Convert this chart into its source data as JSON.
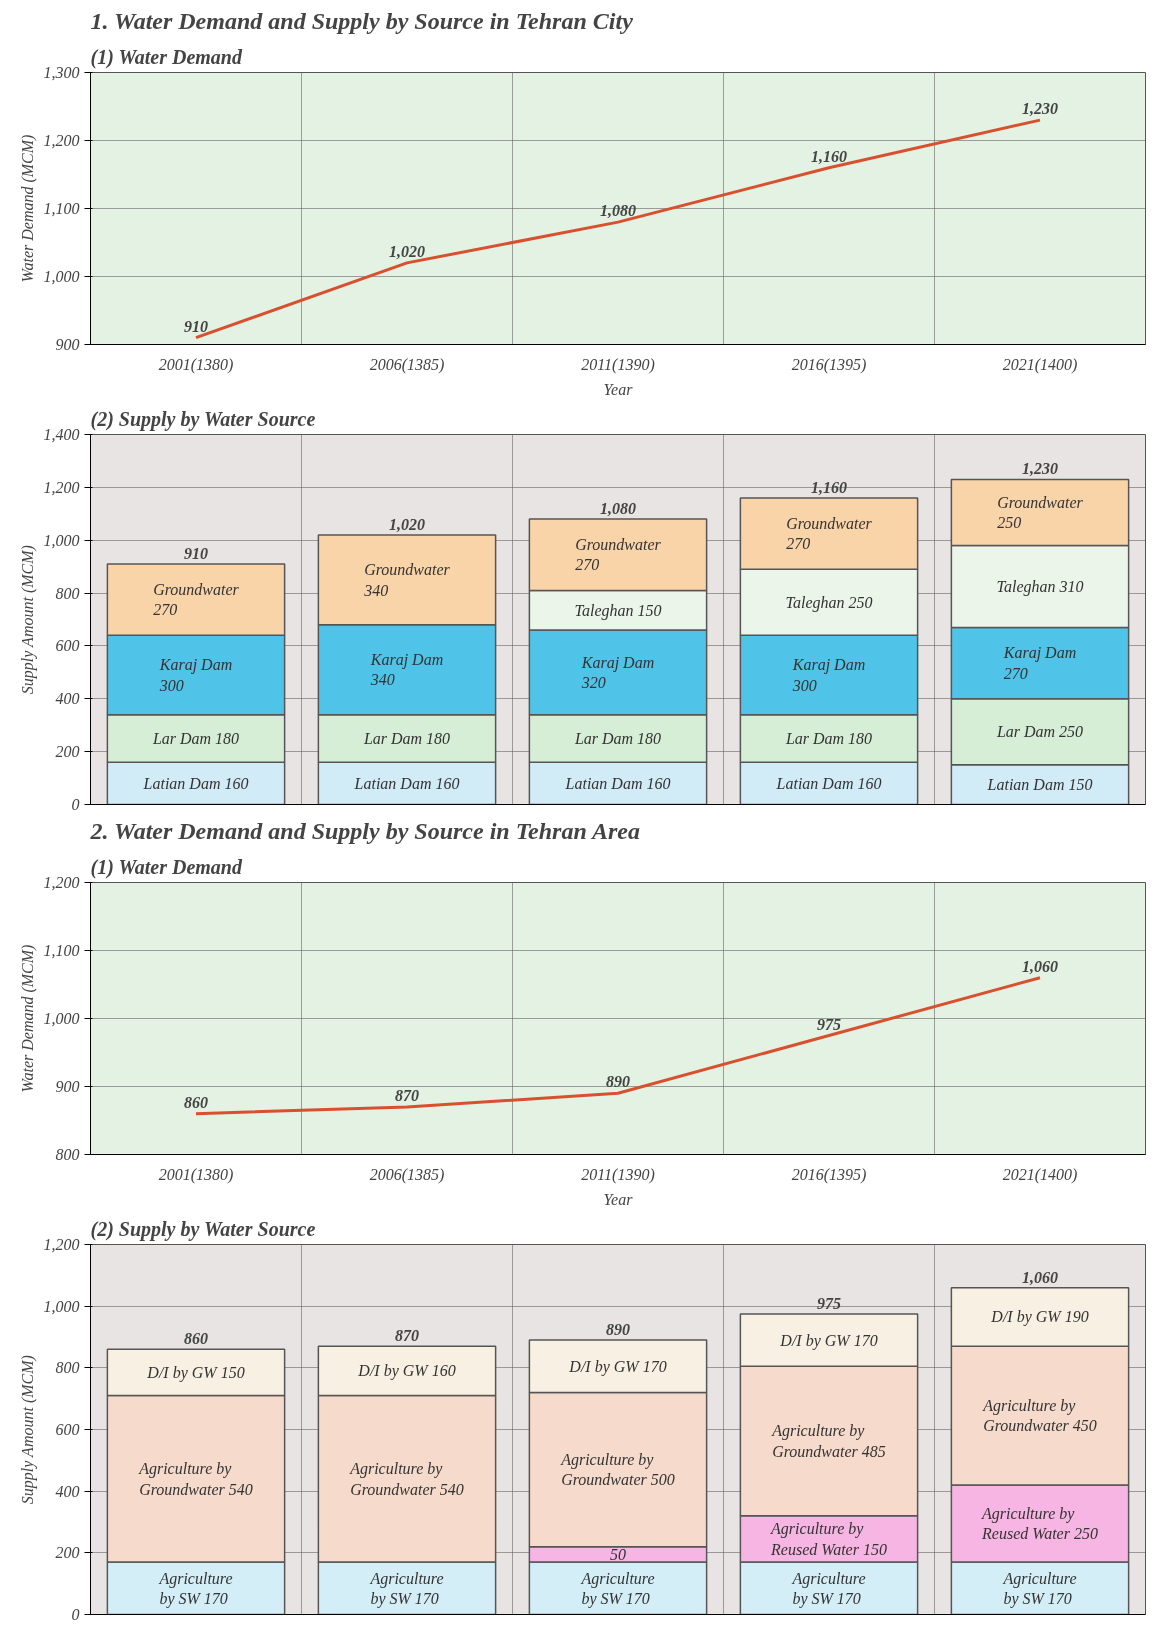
{
  "chart_data": [
    {
      "type": "line",
      "title": "1. Water Demand and Supply by Source in Tehran City",
      "subtitle": "(1) Water Demand",
      "xlabel": "Year",
      "ylabel": "Water Demand (MCM)",
      "categories": [
        "2001(1380)",
        "2006(1385)",
        "2011(1390)",
        "2016(1395)",
        "2021(1400)"
      ],
      "color": "#d9502e",
      "values": [
        910,
        1020,
        1080,
        1160,
        1230
      ],
      "value_labels": [
        "910",
        "1,020",
        "1,080",
        "1,160",
        "1,230"
      ],
      "ylim": [
        900,
        1300
      ],
      "yticks": [
        900,
        {
          "value": 1000,
          "label": "1,000"
        },
        {
          "value": 1100,
          "label": "1,100"
        },
        {
          "value": 1200,
          "label": "1,200"
        },
        {
          "value": 1300,
          "label": "1,300"
        }
      ],
      "grid": true
    },
    {
      "type": "bar",
      "stacked": true,
      "title": "(2) Supply by Water Source",
      "ylabel": "Supply Amount (MCM)",
      "categories": [
        null,
        null,
        null,
        null,
        null
      ],
      "ylim": [
        0,
        1400
      ],
      "yticks": [
        0,
        200,
        400,
        600,
        800,
        {
          "value": 1000,
          "label": "1,000"
        },
        {
          "value": 1200,
          "label": "1,200"
        },
        {
          "value": 1400,
          "label": "1,400"
        }
      ],
      "grid": true,
      "totals": [
        "910",
        "1,020",
        "1,080",
        "1,160",
        "1,230"
      ],
      "series": [
        {
          "color": "#d2ecf7",
          "values": [
            160,
            160,
            160,
            160,
            150
          ],
          "value_labels": [
            "Latian Dam 160",
            "Latian Dam 160",
            "Latian Dam 160",
            "Latian Dam 160",
            "Latian Dam 150"
          ]
        },
        {
          "color": "#d6edd6",
          "values": [
            180,
            180,
            180,
            180,
            250
          ],
          "value_labels": [
            "Lar Dam 180",
            "Lar Dam 180",
            "Lar Dam 180",
            "Lar Dam 180",
            "Lar Dam 250"
          ]
        },
        {
          "color": "#4fc4e8",
          "values": [
            300,
            340,
            320,
            300,
            270
          ],
          "value_labels": [
            "Karaj Dam\n300",
            "Karaj Dam\n340",
            "Karaj Dam\n320",
            "Karaj Dam\n300",
            "Karaj Dam\n270"
          ]
        },
        {
          "color": "#ebf5ea",
          "values": [
            null,
            null,
            150,
            250,
            310
          ],
          "value_labels": [
            null,
            null,
            "Taleghan 150",
            "Taleghan 250",
            "Taleghan 310"
          ]
        },
        {
          "color": "#f9d4a9",
          "values": [
            270,
            340,
            270,
            270,
            250
          ],
          "value_labels": [
            "Groundwater\n270",
            "Groundwater\n340",
            "Groundwater\n270",
            "Groundwater\n270",
            "Groundwater\n250"
          ]
        }
      ]
    },
    {
      "type": "line",
      "title": "2. Water Demand and Supply by Source in Tehran Area",
      "subtitle": "(1) Water Demand",
      "xlabel": "Year",
      "ylabel": "Water Demand (MCM)",
      "categories": [
        "2001(1380)",
        "2006(1385)",
        "2011(1390)",
        "2016(1395)",
        "2021(1400)"
      ],
      "color": "#d9502e",
      "values": [
        860,
        870,
        890,
        975,
        1060
      ],
      "value_labels": [
        "860",
        "870",
        "890",
        "975",
        "1,060"
      ],
      "ylim": [
        800,
        1200
      ],
      "yticks": [
        800,
        900,
        {
          "value": 1000,
          "label": "1,000"
        },
        {
          "value": 1100,
          "label": "1,100"
        },
        {
          "value": 1200,
          "label": "1,200"
        }
      ],
      "grid": true
    },
    {
      "type": "bar",
      "stacked": true,
      "title": "(2) Supply by Water Source",
      "ylabel": "Supply Amount (MCM)",
      "categories": [
        null,
        null,
        null,
        null,
        null
      ],
      "ylim": [
        0,
        1200
      ],
      "yticks": [
        0,
        200,
        400,
        600,
        800,
        {
          "value": 1000,
          "label": "1,000"
        },
        {
          "value": 1200,
          "label": "1,200"
        }
      ],
      "grid": true,
      "totals": [
        "860",
        "870",
        "890",
        "975",
        "1,060"
      ],
      "series": [
        {
          "color": "#d4eef8",
          "values": [
            170,
            170,
            170,
            170,
            170
          ],
          "value_labels": [
            "Agriculture\nby SW 170",
            "Agriculture\nby SW 170",
            "Agriculture\nby SW 170",
            "Agriculture\nby SW 170",
            "Agriculture\nby SW 170"
          ]
        },
        {
          "color": "#f6b5e2",
          "values": [
            null,
            null,
            50,
            150,
            250
          ],
          "value_labels": [
            null,
            null,
            "50",
            "Agriculture by\nReused Water 150",
            "Agriculture by\nReused Water 250"
          ]
        },
        {
          "color": "#f6dacb",
          "values": [
            540,
            540,
            500,
            485,
            450
          ],
          "value_labels": [
            "Agriculture by\nGroundwater 540",
            "Agriculture by\nGroundwater 540",
            "Agriculture by\nGroundwater 500",
            "Agriculture by\nGroundwater 485",
            "Agriculture by\nGroundwater 450"
          ]
        },
        {
          "color": "#f8f0e2",
          "values": [
            150,
            160,
            170,
            170,
            190
          ],
          "value_labels": [
            "D/I by GW 150",
            "D/I by GW 160",
            "D/I by GW 170",
            "D/I by GW 170",
            "D/I by GW 190"
          ]
        }
      ]
    }
  ]
}
